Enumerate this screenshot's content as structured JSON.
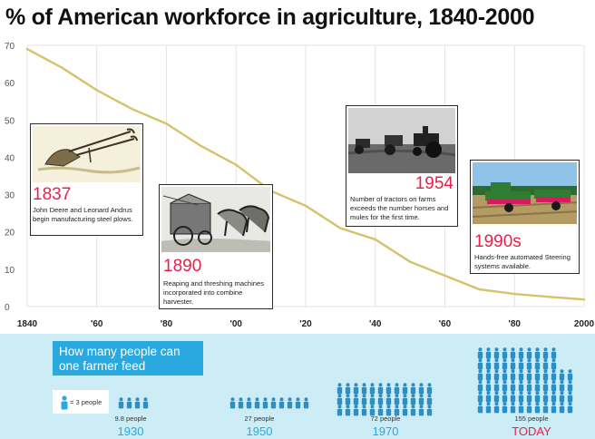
{
  "title": "% of American workforce in agriculture, 1840-2000",
  "chart_data": {
    "type": "line",
    "x": [
      1840,
      1850,
      1860,
      1870,
      1880,
      1890,
      1900,
      1910,
      1920,
      1930,
      1940,
      1950,
      1960,
      1970,
      1980,
      1990,
      2000
    ],
    "series": [
      {
        "values": [
          69,
          64,
          58,
          53,
          49,
          43,
          38,
          31,
          27,
          21,
          18,
          12,
          8.3,
          4.6,
          3.4,
          2.6,
          1.9
        ]
      }
    ],
    "x_tick_values": [
      1840,
      1860,
      1880,
      1900,
      1920,
      1940,
      1960,
      1980,
      2000
    ],
    "x_tick_labels": [
      "1840",
      "'60",
      "'80",
      "'00",
      "'20",
      "'40",
      "'60",
      "'80",
      "2000"
    ],
    "y_ticks": [
      0,
      10,
      20,
      30,
      40,
      50,
      60,
      70
    ],
    "xlim": [
      1840,
      2000
    ],
    "ylim": [
      0,
      70
    ],
    "grid": "vertical",
    "line_color": "#d6c26a",
    "xlabel": "",
    "ylabel": ""
  },
  "annotations": [
    {
      "year": "1837",
      "text": "John Deere and Leonard Andrus begin manufacturing steel plows.",
      "image": "steel-plow-illustration"
    },
    {
      "year": "1890",
      "text": "Reaping and threshing machines incorporated into combine harvester.",
      "image": "horse-drawn-combine-illustration"
    },
    {
      "year": "1954",
      "text": "Number of tractors on farms exceeds the number horses and mules for the first time.",
      "image": "tractors-photo"
    },
    {
      "year": "1990s",
      "text": "Hands-free automated Steering systems available.",
      "image": "automated-harvester-photo"
    }
  ],
  "feed": {
    "heading": "How many people can one farmer feed",
    "legend": "= 3 people",
    "groups": [
      {
        "year": "1930",
        "people": "9.8 people"
      },
      {
        "year": "1950",
        "people": "27 people"
      },
      {
        "year": "1970",
        "people": "72 people"
      },
      {
        "year": "TODAY",
        "people": "155 people"
      }
    ]
  },
  "colors": {
    "accent_red": "#e8204a",
    "accent_blue": "#29a9df",
    "panel_bg": "#ccecf6",
    "people_icon": "#2b8fc4"
  }
}
